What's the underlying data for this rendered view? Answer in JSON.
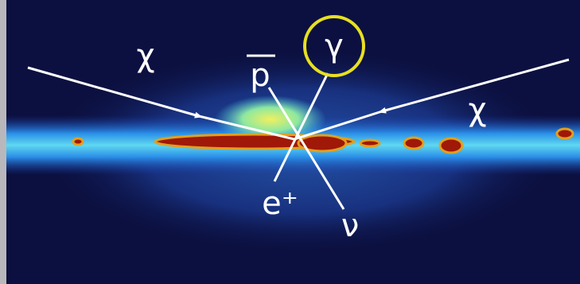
{
  "labels": {
    "chi_left": "χ",
    "chi_right": "χ",
    "antiproton": "p",
    "gamma": "γ",
    "positron": "e⁺",
    "neutrino": "ν"
  }
}
